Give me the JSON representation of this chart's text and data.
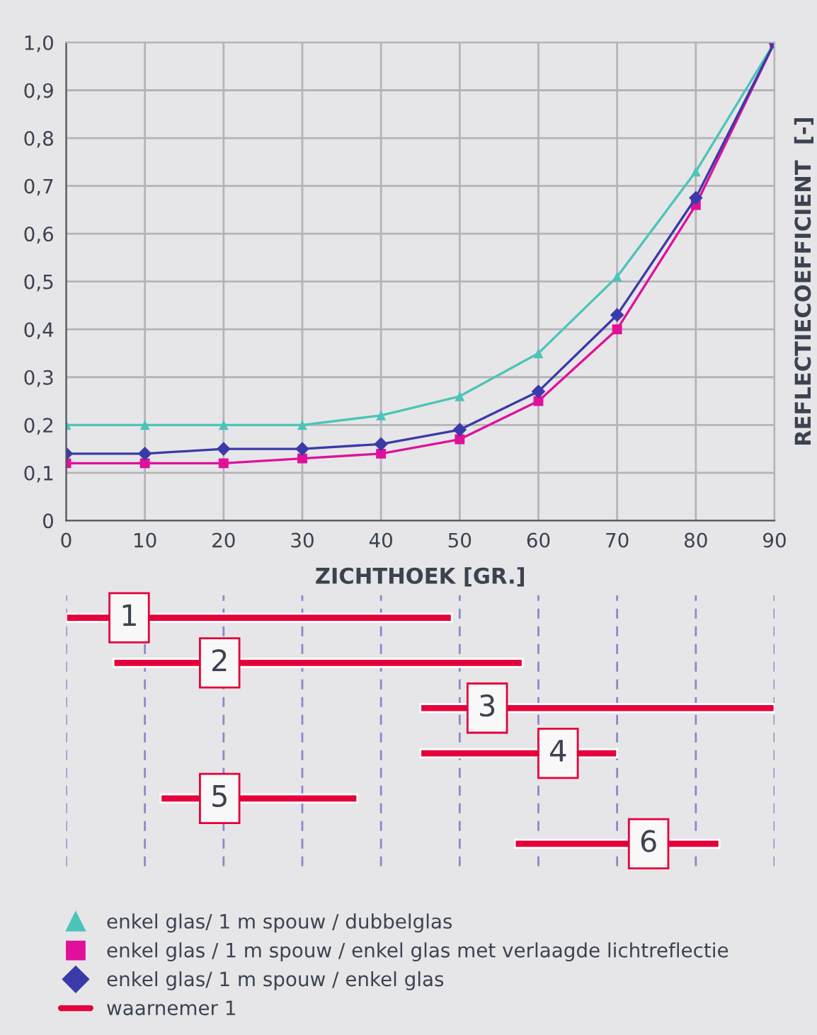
{
  "chart_data": [
    {
      "type": "line",
      "xlabel": "ZICHTHOEK [GR.]",
      "ylabel": "REFLECTIECOEFFICIENT  [-]",
      "x": [
        0,
        10,
        20,
        30,
        40,
        50,
        60,
        70,
        80,
        90
      ],
      "series": [
        {
          "name": "enkel glas/ 1 m spouw / dubbelglas",
          "color": "#4cc4b8",
          "marker": "triangle",
          "values": [
            0.2,
            0.2,
            0.2,
            0.2,
            0.22,
            0.26,
            0.35,
            0.51,
            0.73,
            1.0
          ]
        },
        {
          "name": "enkel glas / 1 m spouw / enkel glas met verlaagde lichtreflectie",
          "color": "#e0109a",
          "marker": "square",
          "values": [
            0.12,
            0.12,
            0.12,
            0.13,
            0.14,
            0.17,
            0.25,
            0.4,
            0.66,
            1.0
          ]
        },
        {
          "name": "enkel glas/ 1 m spouw / enkel glas",
          "color": "#3a3aa8",
          "marker": "diamond",
          "values": [
            0.14,
            0.14,
            0.15,
            0.15,
            0.16,
            0.19,
            0.27,
            0.43,
            0.675,
            1.0
          ]
        }
      ],
      "xlim": [
        0,
        90
      ],
      "xticks": [
        0,
        10,
        20,
        30,
        40,
        50,
        60,
        70,
        80,
        90
      ],
      "ylim": [
        0,
        1.0
      ],
      "yticks": [
        {
          "value": 0,
          "label": "0"
        },
        {
          "value": 0.1,
          "label": "0,1"
        },
        {
          "value": 0.2,
          "label": "0,2"
        },
        {
          "value": 0.3,
          "label": "0,3"
        },
        {
          "value": 0.4,
          "label": "0,4"
        },
        {
          "value": 0.5,
          "label": "0,5"
        },
        {
          "value": 0.6,
          "label": "0,6"
        },
        {
          "value": 0.7,
          "label": "0,7"
        },
        {
          "value": 0.8,
          "label": "0,8"
        },
        {
          "value": 0.9,
          "label": "0,9"
        },
        {
          "value": 1.0,
          "label": "1,0"
        }
      ],
      "grid": true,
      "legend": "bottom"
    },
    {
      "type": "bar",
      "orientation": "horizontal",
      "categories": [
        null,
        null,
        null,
        null,
        null,
        null
      ],
      "series": [
        {
          "name": "waarnemer 1",
          "color": "#e4003a",
          "values": [
            49,
            52,
            45,
            25,
            25,
            26
          ],
          "base": [
            0,
            6,
            45,
            45,
            12,
            57
          ]
        }
      ],
      "annotations": [
        {
          "text": "1",
          "x": 8
        },
        {
          "text": "2",
          "x": 19.5
        },
        {
          "text": "3",
          "x": 53.5
        },
        {
          "text": "4",
          "x": 62.5
        },
        {
          "text": "5",
          "x": 19.5
        },
        {
          "text": "6",
          "x": 74
        }
      ],
      "xlim": [
        0,
        90
      ],
      "xticks": [
        0,
        10,
        20,
        30,
        40,
        50,
        60,
        70,
        80,
        90
      ],
      "tick_labels": false,
      "grid": "x",
      "legend": "bottom"
    }
  ]
}
